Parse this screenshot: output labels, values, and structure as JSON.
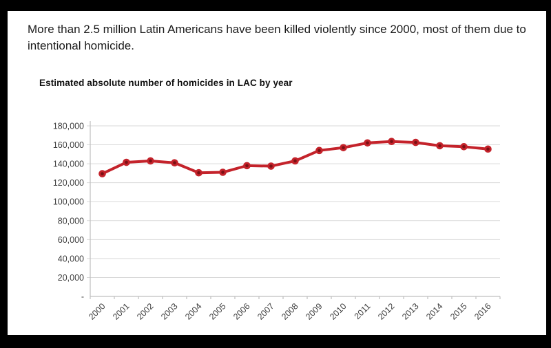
{
  "headline": "More than 2.5 million Latin Americans have been killed violently since 2000, most of them due to intentional homicide.",
  "chart_data": {
    "type": "line",
    "title": "Estimated absolute number of homicides in LAC by year",
    "categories": [
      "2000",
      "2001",
      "2002",
      "2003",
      "2004",
      "2005",
      "2006",
      "2007",
      "2008",
      "2009",
      "2010",
      "2011",
      "2012",
      "2013",
      "2014",
      "2015",
      "2016"
    ],
    "series": [
      {
        "name": "Estimated absolute number of homicides in LAC",
        "values": [
          129500,
          141500,
          143000,
          141000,
          130500,
          131000,
          138000,
          137500,
          143000,
          154000,
          157000,
          162000,
          163500,
          162500,
          159000,
          158000,
          155500
        ]
      }
    ],
    "xlabel": "",
    "ylabel": "",
    "ylim": [
      0,
      180000
    ],
    "ytick_step": 20000,
    "ytick_labels_top_to_bottom": [
      "180,000",
      "160,000",
      "140,000",
      "120,000",
      "100,000",
      "80,000",
      "60,000",
      "40,000",
      "20,000",
      "-"
    ],
    "x_tick_rotation_deg": -45,
    "grid": true,
    "legend": "none",
    "colors": {
      "line": "#c4232b",
      "marker_center": "#7a1014",
      "gridline": "#d9d9d9",
      "axis": "#bfbfbf",
      "tick_text": "#404040",
      "title_text": "#111111",
      "headline_text": "#1a1a1a",
      "background": "#ffffff",
      "frame": "#000000"
    }
  }
}
